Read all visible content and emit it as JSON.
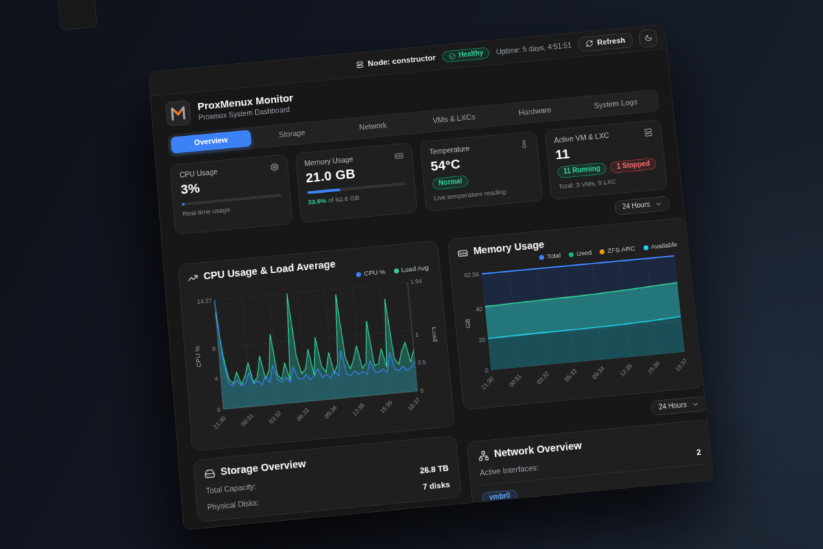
{
  "topbar": {
    "node_label": "Node:",
    "node_value": "constructor",
    "health_badge": "Healthy",
    "uptime": "Uptime: 5 days, 4:51:51",
    "refresh_label": "Refresh"
  },
  "header": {
    "title": "ProxMenux Monitor",
    "subtitle": "Proxmox System Dashboard"
  },
  "tabs": [
    {
      "label": "Overview",
      "active": true
    },
    {
      "label": "Storage",
      "active": false
    },
    {
      "label": "Network",
      "active": false
    },
    {
      "label": "VMs & LXCs",
      "active": false
    },
    {
      "label": "Hardware",
      "active": false
    },
    {
      "label": "System Logs",
      "active": false
    }
  ],
  "stats": {
    "cpu": {
      "label": "CPU Usage",
      "value": "3%",
      "percent": 3,
      "caption": "Real-time usage"
    },
    "memory": {
      "label": "Memory Usage",
      "value": "21.0 GB",
      "percent": 33.6,
      "caption_highlight": "33.6%",
      "caption_rest": " of 62.6 GB"
    },
    "temperature": {
      "label": "Temperature",
      "value": "54°C",
      "badge": "Normal",
      "caption": "Live temperature reading"
    },
    "vms": {
      "label": "Active VM & LXC",
      "value": "11",
      "badge_running": "11 Running",
      "badge_stopped": "1 Stopped",
      "caption": "Total: 3 VMs, 9 LXC"
    }
  },
  "range_selector_top": "24 Hours",
  "range_selector_memory": "24 Hours",
  "storage": {
    "title": "Storage Overview",
    "rows": [
      {
        "label": "Total Capacity:",
        "value": "26.8 TB"
      },
      {
        "label": "Physical Disks:",
        "value": "7 disks"
      }
    ]
  },
  "network": {
    "title": "Network Overview",
    "rows": [
      {
        "label": "Active Interfaces:",
        "value": "2"
      }
    ],
    "interface_badge": "vmbr0"
  },
  "colors": {
    "accent_blue": "#3b82f6",
    "green": "#10b981",
    "orange": "#f59e0b",
    "cyan": "#22d3ee",
    "red": "#ef4444"
  },
  "chart_data": [
    {
      "id": "cpu_load",
      "type": "line",
      "title": "CPU Usage & Load Average",
      "grid": true,
      "legend_position": "top-right",
      "x_ticks": [
        "21:30",
        "00:31",
        "03:32",
        "06:33",
        "09:34",
        "12:35",
        "15:36",
        "18:37"
      ],
      "left_axis": {
        "label": "CPU %",
        "ticks": [
          0,
          4,
          8,
          14.27
        ],
        "max": 14.27
      },
      "right_axis": {
        "label": "Load",
        "ticks": [
          0,
          0.5,
          1,
          1.94
        ],
        "max": 1.94
      },
      "series": [
        {
          "name": "CPU %",
          "color": "#3b82f6",
          "axis": "left",
          "values": [
            14.27,
            5.8,
            3.2,
            2.9,
            3.6,
            2.8,
            3.1,
            4.4,
            2.9,
            3.3,
            2.7,
            3.8,
            2.9,
            5.1,
            3.2,
            2.8,
            3.4,
            2.7,
            4.6,
            3.1,
            2.9,
            3.5,
            2.8,
            3.2,
            4.1,
            2.9,
            3.3,
            2.8,
            3.6,
            2.9,
            6.2,
            3.1,
            2.8,
            3.4,
            2.9,
            3.2,
            2.8,
            4.5,
            3.0,
            2.9,
            3.3,
            2.8,
            5.4,
            3.1,
            2.9,
            3.4,
            2.8,
            3.2,
            3.9
          ]
        },
        {
          "name": "Load Avg",
          "color": "#34d399",
          "axis": "right",
          "values": [
            1.72,
            0.95,
            0.52,
            0.44,
            0.63,
            0.41,
            0.55,
            0.78,
            0.42,
            0.51,
            0.88,
            0.47,
            0.6,
            1.25,
            0.52,
            0.43,
            0.72,
            0.4,
            1.94,
            0.82,
            0.5,
            0.57,
            0.92,
            0.44,
            1.12,
            0.6,
            0.48,
            0.83,
            0.45,
            0.62,
            1.85,
            0.71,
            0.5,
            0.66,
            0.9,
            0.49,
            0.58,
            1.32,
            0.52,
            0.54,
            0.81,
            0.47,
            1.68,
            0.62,
            0.5,
            0.73,
            0.88,
            0.53,
            0.74
          ]
        }
      ]
    },
    {
      "id": "memory",
      "type": "area",
      "title": "Memory Usage",
      "stacked": true,
      "grid": true,
      "legend_position": "top-right",
      "x_ticks": [
        "21:30",
        "00:31",
        "03:32",
        "06:33",
        "09:34",
        "12:35",
        "15:36",
        "18:37"
      ],
      "y_axis": {
        "label": "GB",
        "ticks": [
          0,
          20,
          40,
          62.56
        ],
        "max": 62.56
      },
      "series": [
        {
          "name": "Total",
          "color": "#3b82f6",
          "values": [
            62.56,
            62.56,
            62.56,
            62.56,
            62.56,
            62.56,
            62.56,
            62.56
          ]
        },
        {
          "name": "Used",
          "color": "#10b981",
          "values": [
            20.5,
            20.7,
            20.9,
            21.0,
            21.1,
            21.4,
            22.0,
            23.0
          ]
        },
        {
          "name": "ZFS ARC",
          "color": "#f59e0b",
          "values": [
            20.7,
            20.9,
            21.0,
            21.2,
            21.5,
            21.9,
            22.2,
            22.1
          ]
        },
        {
          "name": "Available",
          "color": "#22d3ee",
          "values": [
            21.36,
            20.96,
            20.66,
            20.36,
            19.96,
            19.26,
            18.36,
            17.46
          ]
        }
      ]
    }
  ]
}
